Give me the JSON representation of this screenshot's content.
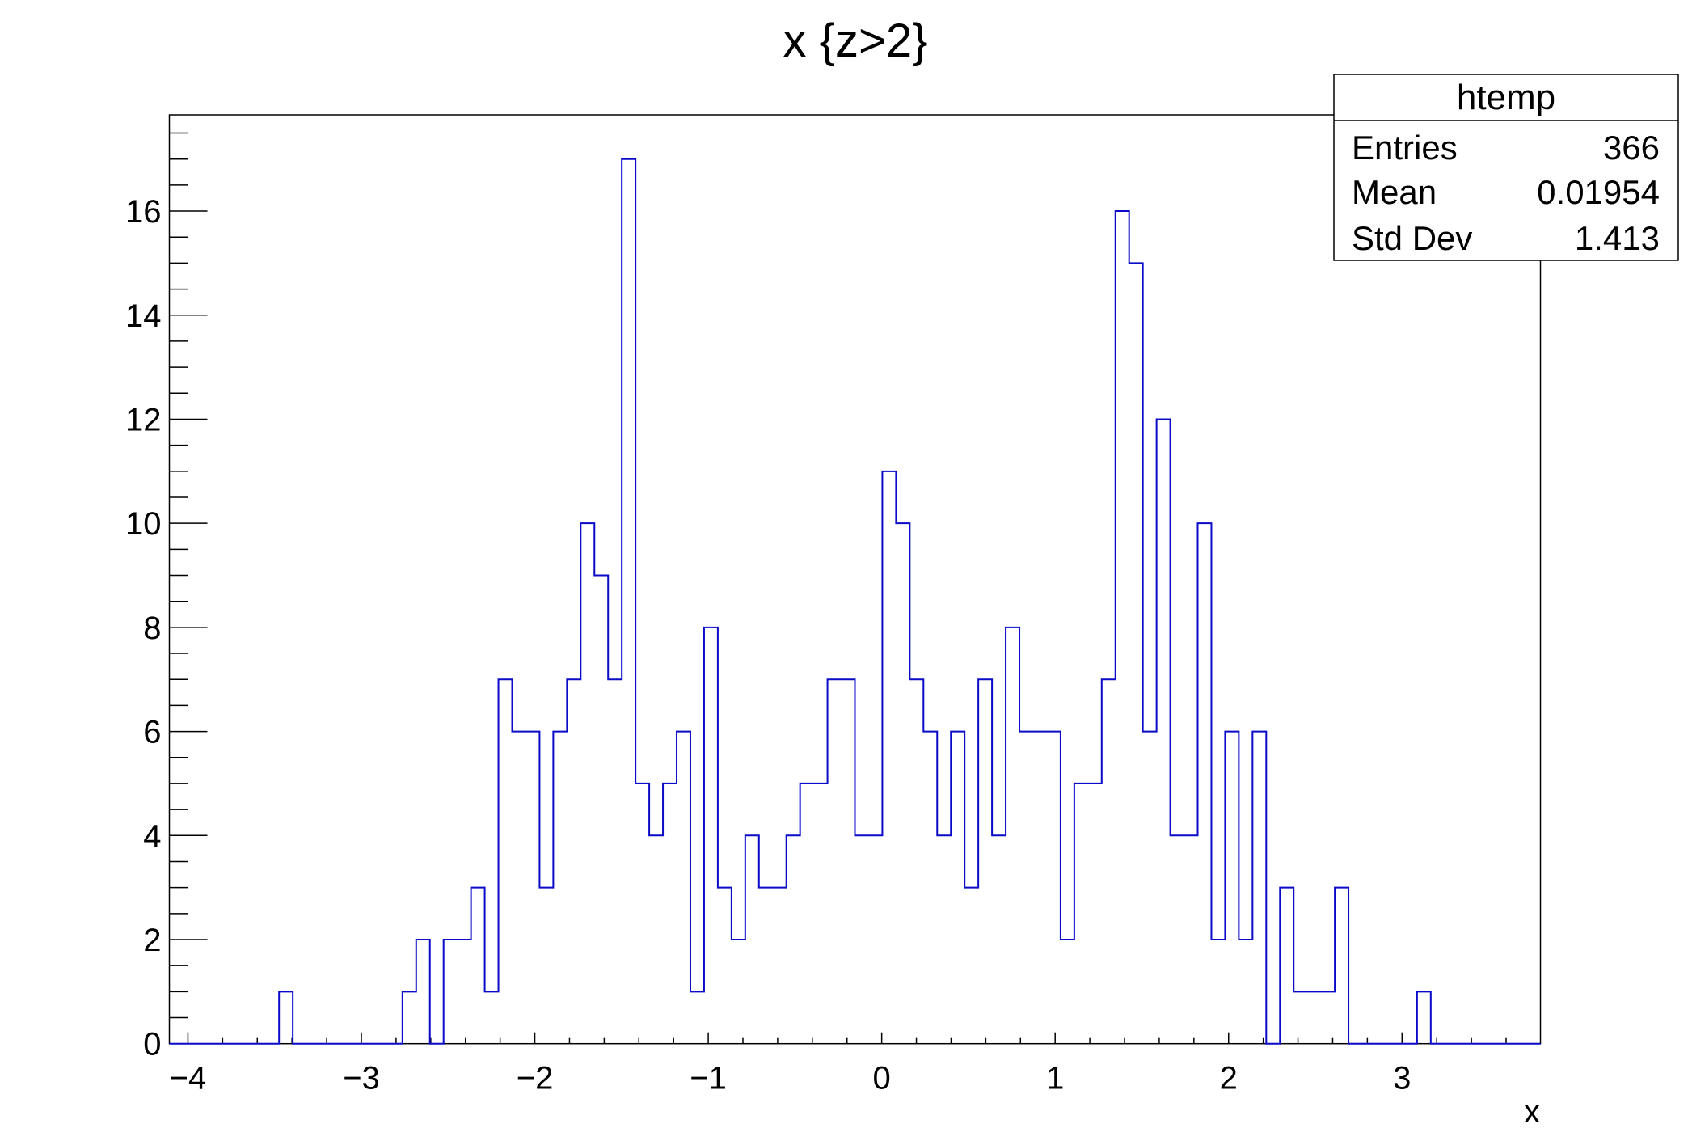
{
  "chart_data": {
    "type": "bar",
    "style": "step-histogram",
    "title": "x {z>2}",
    "xlabel": "x",
    "ylabel": "",
    "xlim": [
      -4.107,
      3.798
    ],
    "ylim": [
      0,
      17.85
    ],
    "nbins": 100,
    "grid": false,
    "line_color": "#0a0ac8",
    "x_ticks": [
      -4,
      -3,
      -2,
      -1,
      0,
      1,
      2,
      3
    ],
    "x_tick_labels": [
      "−4",
      "−3",
      "−2",
      "−1",
      "0",
      "1",
      "2",
      "3"
    ],
    "y_ticks": [
      0,
      2,
      4,
      6,
      8,
      10,
      12,
      14,
      16
    ],
    "y_tick_labels": [
      "0",
      "2",
      "4",
      "6",
      "8",
      "10",
      "12",
      "14",
      "16"
    ],
    "values": [
      0,
      0,
      0,
      0,
      0,
      0,
      0,
      0,
      1,
      0,
      0,
      0,
      0,
      0,
      0,
      0,
      0,
      1,
      2,
      0,
      2,
      2,
      3,
      1,
      7,
      6,
      6,
      3,
      6,
      7,
      10,
      9,
      7,
      17,
      5,
      4,
      5,
      6,
      1,
      8,
      3,
      2,
      4,
      3,
      3,
      4,
      5,
      5,
      7,
      7,
      4,
      4,
      11,
      10,
      7,
      6,
      4,
      6,
      3,
      7,
      4,
      8,
      6,
      6,
      6,
      2,
      5,
      5,
      7,
      16,
      15,
      6,
      12,
      4,
      4,
      10,
      2,
      6,
      2,
      6,
      0,
      3,
      1,
      1,
      1,
      3,
      0,
      0,
      0,
      0,
      0,
      1,
      0,
      0,
      0,
      0,
      0,
      0,
      0,
      0
    ],
    "stats_box": {
      "name": "htemp",
      "rows": [
        {
          "label": "Entries",
          "value": "366"
        },
        {
          "label": "Mean",
          "value": "0.01954"
        },
        {
          "label": "Std Dev",
          "value": "1.413"
        }
      ],
      "placement": "top-right"
    }
  }
}
